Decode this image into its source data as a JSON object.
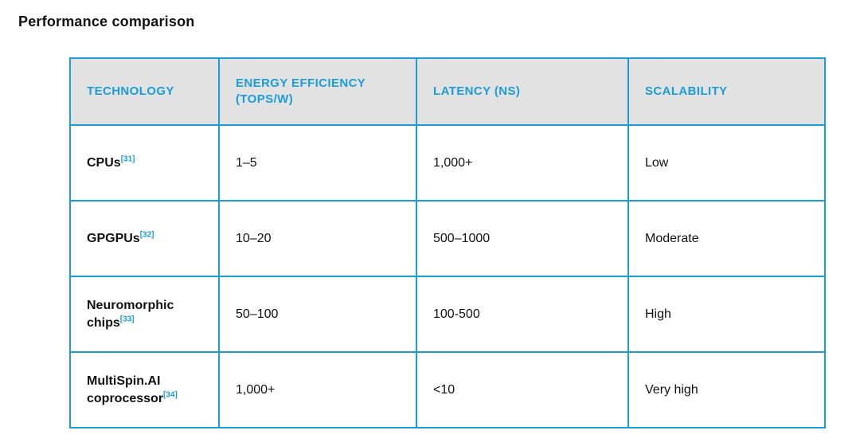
{
  "page": {
    "title": "Performance comparison"
  },
  "colors": {
    "accent": "#1b9dd9",
    "header_background": "#e2e2e2",
    "body_text": "#111111"
  },
  "table": {
    "columns": [
      {
        "label": "TECHNOLOGY"
      },
      {
        "label": "ENERGY EFFICIENCY (TOPS/W)"
      },
      {
        "label": "LATENCY (NS)"
      },
      {
        "label": "SCALABILITY"
      }
    ],
    "rows": [
      {
        "technology": "CPUs",
        "ref": "[31]",
        "energy_efficiency": "1–5",
        "latency": "1,000+",
        "scalability": "Low"
      },
      {
        "technology": "GPGPUs",
        "ref": "[32]",
        "energy_efficiency": "10–20",
        "latency": "500–1000",
        "scalability": "Moderate"
      },
      {
        "technology": "Neuromorphic chips",
        "ref": "[33]",
        "energy_efficiency": "50–100",
        "latency": "100-500",
        "scalability": "High"
      },
      {
        "technology": "MultiSpin.AI coprocessor",
        "ref": "[34]",
        "energy_efficiency": "1,000+",
        "latency": "<10",
        "scalability": "Very high"
      }
    ]
  }
}
